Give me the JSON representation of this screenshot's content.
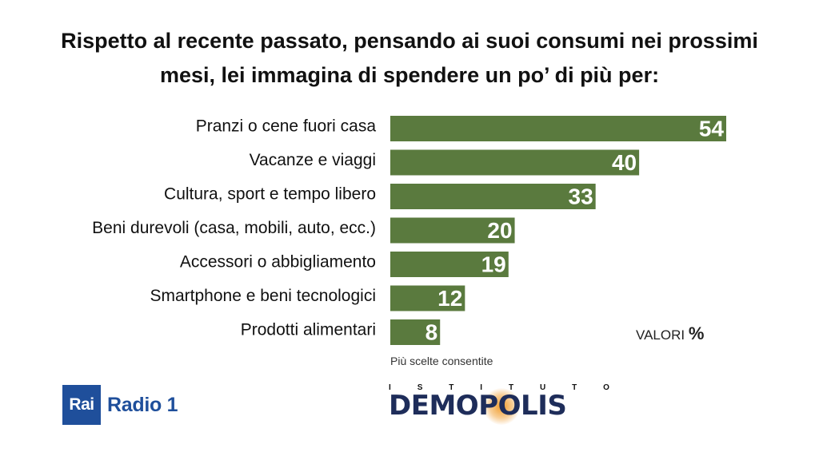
{
  "title_lines": [
    "Rispetto al recente passato, pensando ai suoi consumi nei prossimi",
    "mesi, lei immagina di spendere un po’ di più per:"
  ],
  "chart_data": {
    "type": "bar",
    "orientation": "horizontal",
    "categories": [
      "Pranzi o cene fuori casa",
      "Vacanze e viaggi",
      "Cultura, sport e tempo libero",
      "Beni durevoli (casa, mobili, auto, ecc.)",
      "Accessori o abbigliamento",
      "Smartphone e beni tecnologici",
      "Prodotti alimentari"
    ],
    "values": [
      54,
      40,
      33,
      20,
      19,
      12,
      8
    ],
    "xlim": [
      0,
      54
    ],
    "bar_color": "#5a7a3e",
    "value_label_color": "#ffffff",
    "grid": false
  },
  "units_label": "VALORI",
  "units_symbol": "%",
  "footnote": "Più scelte consentite",
  "logos": {
    "rai_box": "Rai",
    "rai_text": "Radio 1",
    "rai_color": "#1f4f9b",
    "demopolis_top": [
      "I",
      "S",
      "T",
      "I",
      "T",
      "U",
      "T",
      "O"
    ],
    "demopolis_left": "DEM",
    "demopolis_o": "O",
    "demopolis_right": "POLIS",
    "demopolis_color": "#1e2d5a"
  }
}
